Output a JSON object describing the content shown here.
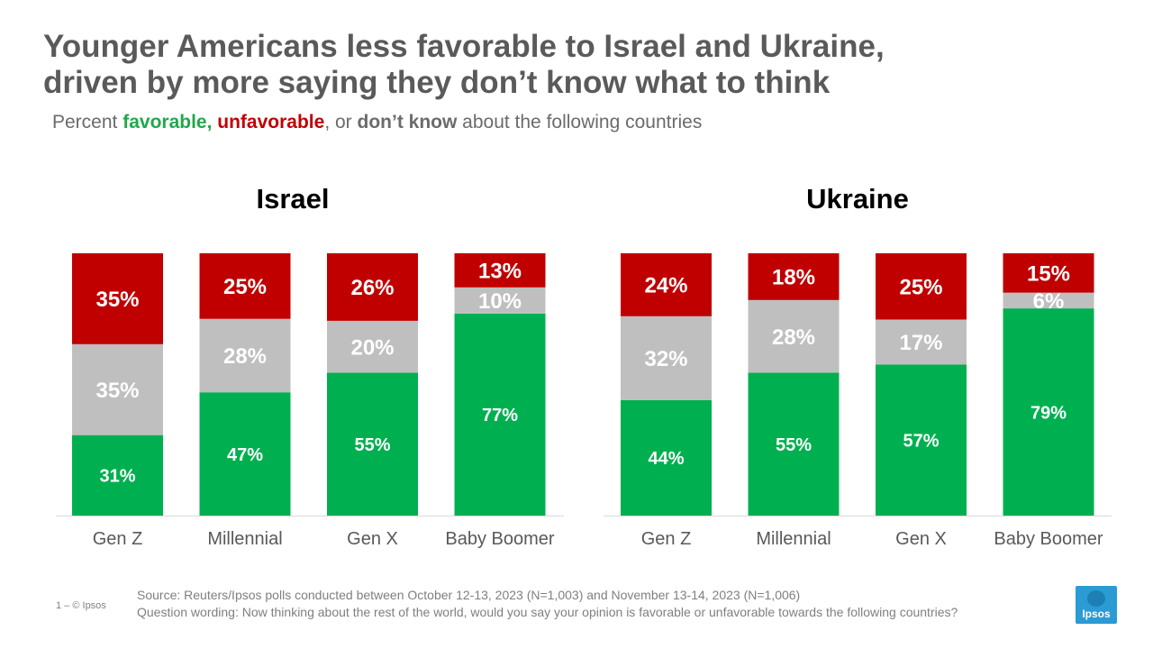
{
  "title_line1": "Younger Americans less favorable to Israel and Ukraine,",
  "title_line2": "driven by more saying they don’t know what to think",
  "subtitle": {
    "prefix": "Percent ",
    "favorable": "favorable,",
    "space": " ",
    "unfavorable": "unfavorable",
    "mid": ", or ",
    "dont_know": "don’t know",
    "suffix": " about the following countries"
  },
  "footer": {
    "source": "Source: Reuters/Ipsos polls conducted between October 12-13, 2023 (N=1,003) and November 13-14, 2023 (N=1,006)",
    "question": "Question wording: Now thinking about the rest of the world, would you say your opinion is favorable or unfavorable towards the following countries?"
  },
  "page_label": "1 –  © Ipsos",
  "logo_text": "Ipsos",
  "colors": {
    "favorable": "#00b050",
    "dont_know": "#bfbfbf",
    "unfavorable": "#c00000",
    "baseline": "#d9d9d9"
  },
  "chart_data": [
    {
      "type": "bar",
      "stacked": true,
      "title": "Israel",
      "categories": [
        "Gen Z",
        "Millennial",
        "Gen X",
        "Baby Boomer"
      ],
      "series": [
        {
          "key": "favorable",
          "values": [
            31,
            47,
            55,
            77
          ],
          "labels": [
            "31%",
            "47%",
            "55%",
            "77%"
          ]
        },
        {
          "key": "dont_know",
          "values": [
            35,
            28,
            20,
            10
          ],
          "labels": [
            "35%",
            "28%",
            "20%",
            "10%"
          ]
        },
        {
          "key": "unfavorable",
          "values": [
            35,
            25,
            26,
            13
          ],
          "labels": [
            "35%",
            "25%",
            "26%",
            "13%"
          ]
        }
      ]
    },
    {
      "type": "bar",
      "stacked": true,
      "title": "Ukraine",
      "categories": [
        "Gen Z",
        "Millennial",
        "Gen X",
        "Baby Boomer"
      ],
      "series": [
        {
          "key": "favorable",
          "values": [
            44,
            55,
            57,
            79
          ],
          "labels": [
            "44%",
            "55%",
            "57%",
            "79%"
          ]
        },
        {
          "key": "dont_know",
          "values": [
            32,
            28,
            17,
            6
          ],
          "labels": [
            "32%",
            "28%",
            "17%",
            "6%"
          ]
        },
        {
          "key": "unfavorable",
          "values": [
            24,
            18,
            25,
            15
          ],
          "labels": [
            "24%",
            "18%",
            "25%",
            "15%"
          ]
        }
      ]
    }
  ]
}
